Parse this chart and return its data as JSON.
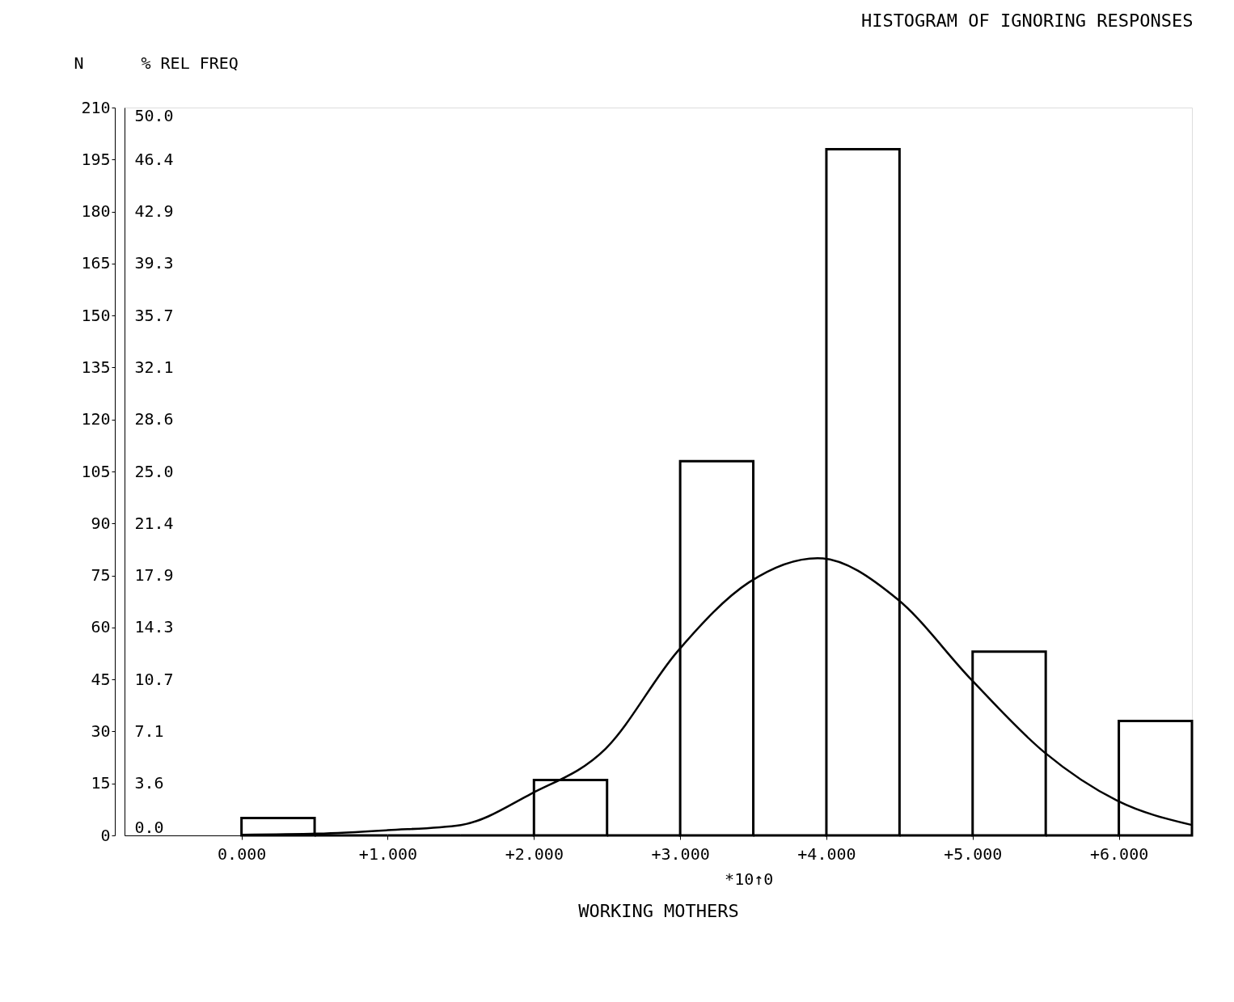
{
  "chart_data": {
    "type": "histogram",
    "title": "HISTOGRAM OF IGNORING RESPONSES",
    "xlabel": "WORKING MOTHERS",
    "ylabel": "N",
    "y2label": "% REL FREQ",
    "annotations": [
      "*10↑0"
    ],
    "bins": [
      0,
      0.5,
      1,
      1.5,
      2,
      2.5,
      3,
      3.5,
      4,
      4.5,
      5,
      5.5,
      6,
      6.5
    ],
    "values": [
      5,
      0,
      0,
      0,
      16,
      0,
      108,
      0,
      198,
      0,
      53,
      0,
      33
    ],
    "color": "#000000",
    "series": [
      {
        "type": "line",
        "color": "#000000",
        "x": [
          0,
          0.52,
          1.0,
          1.5,
          1.98,
          2.49,
          2.98,
          3.47,
          3.94,
          4.49,
          4.99,
          5.49,
          5.99,
          6.5
        ],
        "values": [
          0.2,
          0.5,
          1.5,
          3,
          12,
          25,
          53,
          73,
          80,
          68,
          45,
          24,
          10,
          3
        ]
      }
    ],
    "xlim": [
      -0.8,
      6.5
    ],
    "xticks": [
      {
        "value": 0,
        "label": "0.000"
      },
      {
        "value": 1,
        "label": "+1.000"
      },
      {
        "value": 2,
        "label": "+2.000"
      },
      {
        "value": 3,
        "label": "+3.000"
      },
      {
        "value": 4,
        "label": "+4.000"
      },
      {
        "value": 5,
        "label": "+5.000"
      },
      {
        "value": 6,
        "label": "+6.000"
      }
    ],
    "ylim": [
      0,
      210
    ],
    "yticks": [
      0,
      15,
      30,
      45,
      60,
      75,
      90,
      105,
      120,
      135,
      150,
      165,
      180,
      195,
      210
    ],
    "y2lim": [
      0,
      50
    ],
    "y2ticks": [
      {
        "value": 0,
        "label": "0.0"
      },
      {
        "value": 3.571,
        "label": "3.6"
      },
      {
        "value": 7.143,
        "label": "7.1"
      },
      {
        "value": 10.714,
        "label": "10.7"
      },
      {
        "value": 14.286,
        "label": "14.3"
      },
      {
        "value": 17.857,
        "label": "17.9"
      },
      {
        "value": 21.429,
        "label": "21.4"
      },
      {
        "value": 25,
        "label": "25.0"
      },
      {
        "value": 28.571,
        "label": "28.6"
      },
      {
        "value": 32.143,
        "label": "32.1"
      },
      {
        "value": 35.714,
        "label": "35.7"
      },
      {
        "value": 39.286,
        "label": "39.3"
      },
      {
        "value": 42.857,
        "label": "42.9"
      },
      {
        "value": 46.429,
        "label": "46.4"
      },
      {
        "value": 50,
        "label": "50.0"
      }
    ],
    "grid": false
  }
}
